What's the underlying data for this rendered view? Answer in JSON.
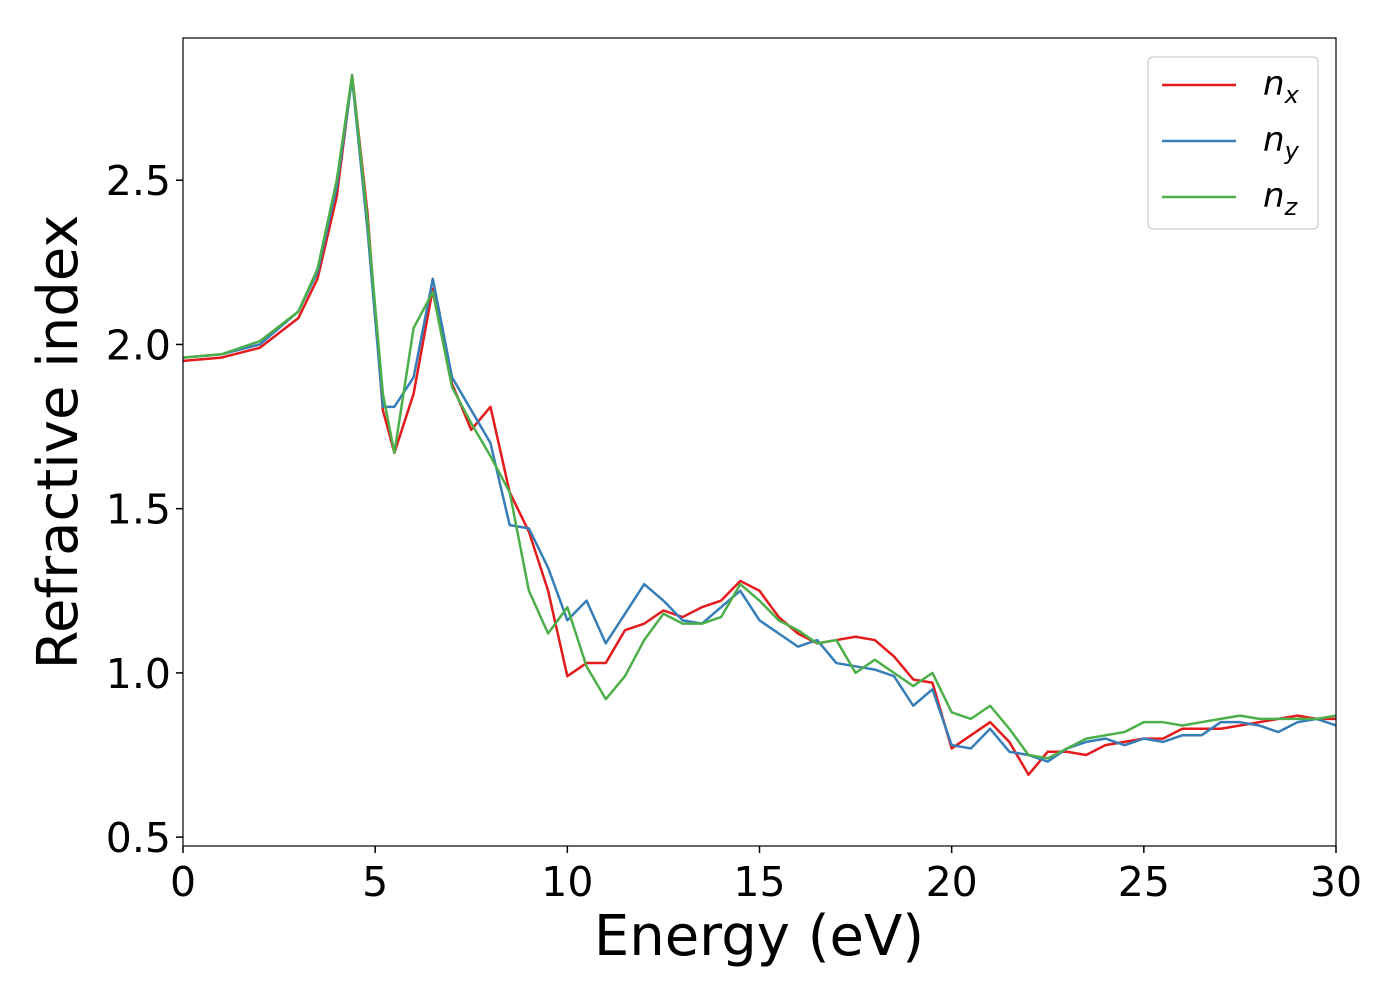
{
  "chart_data": {
    "type": "line",
    "xlabel": "Energy (eV)",
    "ylabel": "Refractive index",
    "x": [
      0,
      1,
      2,
      3,
      3.5,
      4,
      4.4,
      4.8,
      5.2,
      5.5,
      6,
      6.5,
      7,
      7.5,
      8,
      8.5,
      9,
      9.5,
      10,
      10.5,
      11,
      11.5,
      12,
      12.5,
      13,
      13.5,
      14,
      14.5,
      15,
      15.5,
      16,
      16.5,
      17,
      17.5,
      18,
      18.5,
      19,
      19.5,
      20,
      20.5,
      21,
      21.5,
      22,
      22.5,
      23,
      23.5,
      24,
      24.5,
      25,
      25.5,
      26,
      26.5,
      27,
      27.5,
      28,
      28.5,
      29,
      29.5,
      30
    ],
    "series": [
      {
        "name": "nx",
        "color": "#e41a1c",
        "values": [
          1.95,
          1.96,
          1.99,
          2.08,
          2.2,
          2.45,
          2.82,
          2.4,
          1.8,
          1.67,
          1.85,
          2.17,
          1.88,
          1.74,
          1.81,
          1.55,
          1.43,
          1.25,
          0.99,
          1.03,
          1.03,
          1.13,
          1.15,
          1.19,
          1.17,
          1.2,
          1.22,
          1.28,
          1.25,
          1.17,
          1.12,
          1.09,
          1.1,
          1.11,
          1.1,
          1.05,
          0.98,
          0.97,
          0.77,
          0.81,
          0.85,
          0.79,
          0.69,
          0.76,
          0.76,
          0.75,
          0.78,
          0.79,
          0.8,
          0.8,
          0.83,
          0.83,
          0.83,
          0.84,
          0.85,
          0.86,
          0.87,
          0.86,
          0.86
        ]
      },
      {
        "name": "ny",
        "color": "#377eb8",
        "values": [
          1.96,
          1.97,
          2.0,
          2.1,
          2.22,
          2.48,
          2.81,
          2.35,
          1.81,
          1.81,
          1.9,
          2.2,
          1.9,
          1.8,
          1.7,
          1.45,
          1.44,
          1.32,
          1.16,
          1.22,
          1.09,
          1.18,
          1.27,
          1.22,
          1.16,
          1.15,
          1.2,
          1.25,
          1.16,
          1.12,
          1.08,
          1.1,
          1.03,
          1.02,
          1.01,
          0.99,
          0.9,
          0.95,
          0.78,
          0.77,
          0.83,
          0.76,
          0.75,
          0.73,
          0.77,
          0.79,
          0.8,
          0.78,
          0.8,
          0.79,
          0.81,
          0.81,
          0.85,
          0.85,
          0.84,
          0.82,
          0.85,
          0.86,
          0.84
        ]
      },
      {
        "name": "nz",
        "color": "#4daf4a",
        "values": [
          1.96,
          1.97,
          2.01,
          2.1,
          2.23,
          2.5,
          2.82,
          2.38,
          1.85,
          1.67,
          2.05,
          2.16,
          1.87,
          1.76,
          1.66,
          1.55,
          1.25,
          1.12,
          1.2,
          1.02,
          0.92,
          0.99,
          1.1,
          1.18,
          1.15,
          1.15,
          1.17,
          1.27,
          1.22,
          1.16,
          1.13,
          1.09,
          1.1,
          1.0,
          1.04,
          1.0,
          0.96,
          1.0,
          0.88,
          0.86,
          0.9,
          0.83,
          0.75,
          0.74,
          0.77,
          0.8,
          0.81,
          0.82,
          0.85,
          0.85,
          0.84,
          0.85,
          0.86,
          0.87,
          0.86,
          0.86,
          0.86,
          0.86,
          0.87
        ]
      }
    ],
    "xlim": [
      0,
      30
    ],
    "ylim": [
      0.473,
      2.933
    ],
    "xticks": [
      0,
      5,
      10,
      15,
      20,
      25,
      30
    ],
    "yticks": [
      0.5,
      {
        "value": 1.0,
        "label": "1.0"
      },
      1.5,
      {
        "value": 2.0,
        "label": "2.0"
      },
      2.5
    ],
    "legend": "upper right",
    "grid": false
  }
}
